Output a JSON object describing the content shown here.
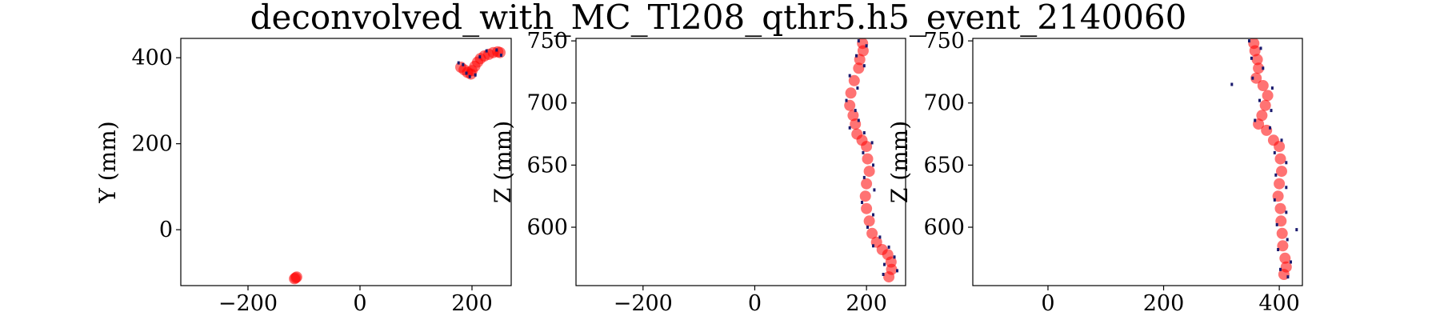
{
  "figure": {
    "title": "deconvolved_with_MC_Tl208_qthr5.h5_event_2140060"
  },
  "colors": {
    "track": "#ff0000",
    "track_alpha": 0.55,
    "hits": "#1a1a6e"
  },
  "chart_data": [
    {
      "type": "scatter",
      "title": "",
      "xlabel": "",
      "ylabel": "Y (mm)",
      "xlim": [
        -320,
        270
      ],
      "ylim": [
        -130,
        445
      ],
      "xticks": [
        -200,
        0,
        200
      ],
      "yticks": [
        0,
        200,
        400
      ],
      "xtick_labels": [
        "−200",
        "0",
        "200"
      ],
      "ytick_labels": [
        "0",
        "200",
        "400"
      ],
      "series": [
        {
          "kind": "track",
          "points": [
            [
              180,
              378
            ],
            [
              186,
              372
            ],
            [
              192,
              366
            ],
            [
              198,
              362
            ],
            [
              200,
              370
            ],
            [
              205,
              380
            ],
            [
              210,
              390
            ],
            [
              215,
              398
            ],
            [
              222,
              404
            ],
            [
              230,
              408
            ],
            [
              238,
              412
            ],
            [
              246,
              414
            ],
            [
              250,
              412
            ],
            [
              -115,
              -112
            ],
            [
              -113,
              -110
            ],
            [
              -117,
              -114
            ]
          ]
        },
        {
          "kind": "hits",
          "points": [
            [
              176,
              388
            ],
            [
              184,
              384
            ],
            [
              206,
              360
            ],
            [
              214,
              402
            ],
            [
              226,
              416
            ],
            [
              244,
              418
            ],
            [
              252,
              406
            ],
            [
              196,
              356
            ],
            [
              190,
              364
            ]
          ]
        }
      ]
    },
    {
      "type": "scatter",
      "title": "",
      "xlabel": "",
      "ylabel": "Z (mm)",
      "xlim": [
        -320,
        270
      ],
      "ylim": [
        553,
        752
      ],
      "xticks": [
        -200,
        0,
        200
      ],
      "yticks": [
        600,
        650,
        700,
        750
      ],
      "xtick_labels": [
        "−200",
        "0",
        "200"
      ],
      "ytick_labels": [
        "600",
        "650",
        "700",
        "750"
      ],
      "series": [
        {
          "kind": "track",
          "points": [
            [
              193,
              748
            ],
            [
              194,
              742
            ],
            [
              188,
              735
            ],
            [
              186,
              728
            ],
            [
              178,
              718
            ],
            [
              172,
              708
            ],
            [
              170,
              698
            ],
            [
              176,
              690
            ],
            [
              180,
              683
            ],
            [
              183,
              675
            ],
            [
              192,
              670
            ],
            [
              200,
              665
            ],
            [
              202,
              655
            ],
            [
              205,
              645
            ],
            [
              200,
              635
            ],
            [
              198,
              625
            ],
            [
              200,
              615
            ],
            [
              205,
              605
            ],
            [
              210,
              595
            ],
            [
              218,
              588
            ],
            [
              228,
              582
            ],
            [
              238,
              578
            ],
            [
              244,
              572
            ],
            [
              245,
              566
            ],
            [
              240,
              560
            ]
          ]
        },
        {
          "kind": "hits",
          "points": [
            [
              186,
              750
            ],
            [
              200,
              746
            ],
            [
              182,
              738
            ],
            [
              196,
              730
            ],
            [
              170,
              722
            ],
            [
              184,
              712
            ],
            [
              164,
              702
            ],
            [
              180,
              694
            ],
            [
              186,
              686
            ],
            [
              170,
              680
            ],
            [
              196,
              676
            ],
            [
              210,
              668
            ],
            [
              194,
              660
            ],
            [
              212,
              650
            ],
            [
              196,
              640
            ],
            [
              214,
              630
            ],
            [
              192,
              620
            ],
            [
              212,
              610
            ],
            [
              202,
              600
            ],
            [
              224,
              592
            ],
            [
              212,
              585
            ],
            [
              240,
              584
            ],
            [
              250,
              576
            ],
            [
              232,
              570
            ],
            [
              255,
              565
            ],
            [
              230,
              562
            ]
          ]
        }
      ]
    },
    {
      "type": "scatter",
      "title": "",
      "xlabel": "",
      "ylabel": "Z (mm)",
      "xlim": [
        -130,
        440
      ],
      "ylim": [
        553,
        752
      ],
      "xticks": [
        0,
        200,
        400
      ],
      "yticks": [
        600,
        650,
        700,
        750
      ],
      "xtick_labels": [
        "0",
        "200",
        "400"
      ],
      "ytick_labels": [
        "600",
        "650",
        "700",
        "750"
      ],
      "series": [
        {
          "kind": "track",
          "points": [
            [
              356,
              748
            ],
            [
              358,
              742
            ],
            [
              362,
              735
            ],
            [
              364,
              728
            ],
            [
              360,
              720
            ],
            [
              372,
              714
            ],
            [
              380,
              706
            ],
            [
              376,
              698
            ],
            [
              370,
              690
            ],
            [
              364,
              683
            ],
            [
              378,
              678
            ],
            [
              390,
              670
            ],
            [
              400,
              665
            ],
            [
              402,
              655
            ],
            [
              404,
              645
            ],
            [
              400,
              635
            ],
            [
              398,
              625
            ],
            [
              402,
              615
            ],
            [
              403,
              605
            ],
            [
              405,
              595
            ],
            [
              406,
              585
            ],
            [
              410,
              575
            ],
            [
              412,
              568
            ],
            [
              408,
              562
            ]
          ]
        },
        {
          "kind": "hits",
          "points": [
            [
              348,
              750
            ],
            [
              368,
              744
            ],
            [
              352,
              736
            ],
            [
              372,
              728
            ],
            [
              354,
              720
            ],
            [
              388,
              712
            ],
            [
              366,
              702
            ],
            [
              386,
              694
            ],
            [
              358,
              686
            ],
            [
              384,
              680
            ],
            [
              404,
              670
            ],
            [
              392,
              660
            ],
            [
              412,
              652
            ],
            [
              394,
              642
            ],
            [
              412,
              632
            ],
            [
              392,
              622
            ],
            [
              412,
              612
            ],
            [
              396,
              602
            ],
            [
              430,
              598
            ],
            [
              414,
              590
            ],
            [
              398,
              582
            ],
            [
              420,
              572
            ],
            [
              402,
              566
            ],
            [
              415,
              560
            ],
            [
              318,
              715
            ]
          ]
        }
      ]
    }
  ]
}
